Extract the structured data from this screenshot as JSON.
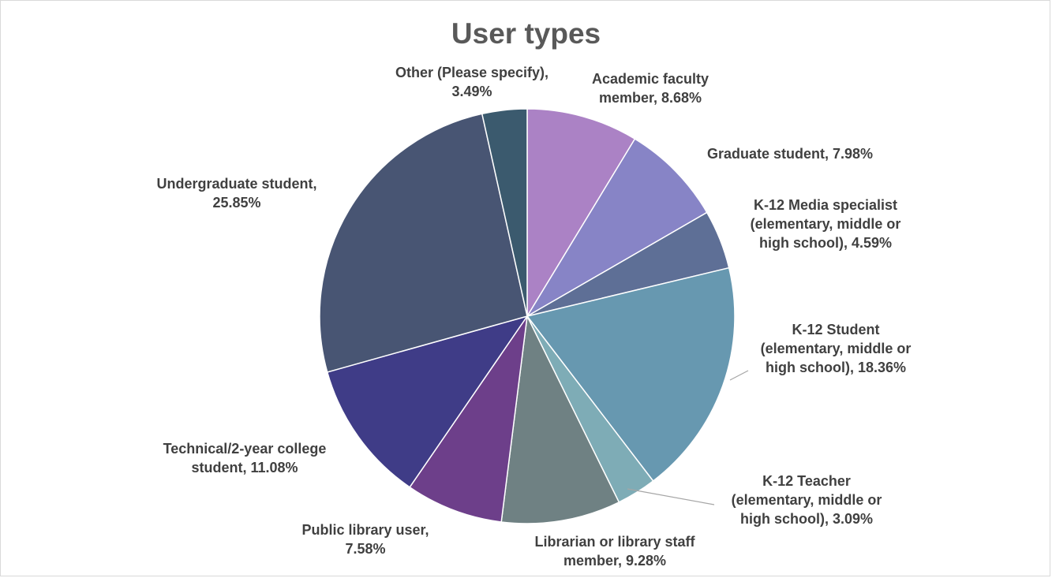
{
  "chart_data": {
    "type": "pie",
    "title": "User types",
    "slices": [
      {
        "name": "Academic faculty member",
        "value": 8.68,
        "color": "#ab82c5",
        "label_lines": [
          "Academic faculty",
          "member, 8.68%"
        ]
      },
      {
        "name": "Graduate student",
        "value": 7.98,
        "color": "#8784c6",
        "label_lines": [
          "Graduate student, 7.98%"
        ]
      },
      {
        "name": "K-12 Media specialist (elementary, middle or high school)",
        "value": 4.59,
        "color": "#5e6f96",
        "label_lines": [
          "K-12 Media specialist",
          "(elementary, middle or",
          "high school), 4.59%"
        ]
      },
      {
        "name": "K-12 Student (elementary, middle or high school)",
        "value": 18.36,
        "color": "#6798b0",
        "label_lines": [
          "K-12 Student",
          "(elementary, middle or",
          "high school), 18.36%"
        ]
      },
      {
        "name": "K-12 Teacher (elementary, middle or high school)",
        "value": 3.09,
        "color": "#7eacb6",
        "label_lines": [
          "K-12 Teacher",
          "(elementary, middle or",
          "high school), 3.09%"
        ]
      },
      {
        "name": "Librarian or library staff member",
        "value": 9.28,
        "color": "#6f8183",
        "label_lines": [
          "Librarian or library staff",
          "member, 9.28%"
        ]
      },
      {
        "name": "Public library user",
        "value": 7.58,
        "color": "#6d3f8a",
        "label_lines": [
          "Public library user,",
          "7.58%"
        ]
      },
      {
        "name": "Technical/2-year college student",
        "value": 11.08,
        "color": "#3f3c87",
        "label_lines": [
          "Technical/2-year college",
          "student, 11.08%"
        ]
      },
      {
        "name": "Undergraduate student",
        "value": 25.85,
        "color": "#485573",
        "label_lines": [
          "Undergraduate student,",
          "25.85%"
        ]
      },
      {
        "name": "Other (Please specify)",
        "value": 3.49,
        "color": "#3b5a6e",
        "label_lines": [
          "Other (Please specify),",
          "3.49%"
        ]
      }
    ]
  }
}
